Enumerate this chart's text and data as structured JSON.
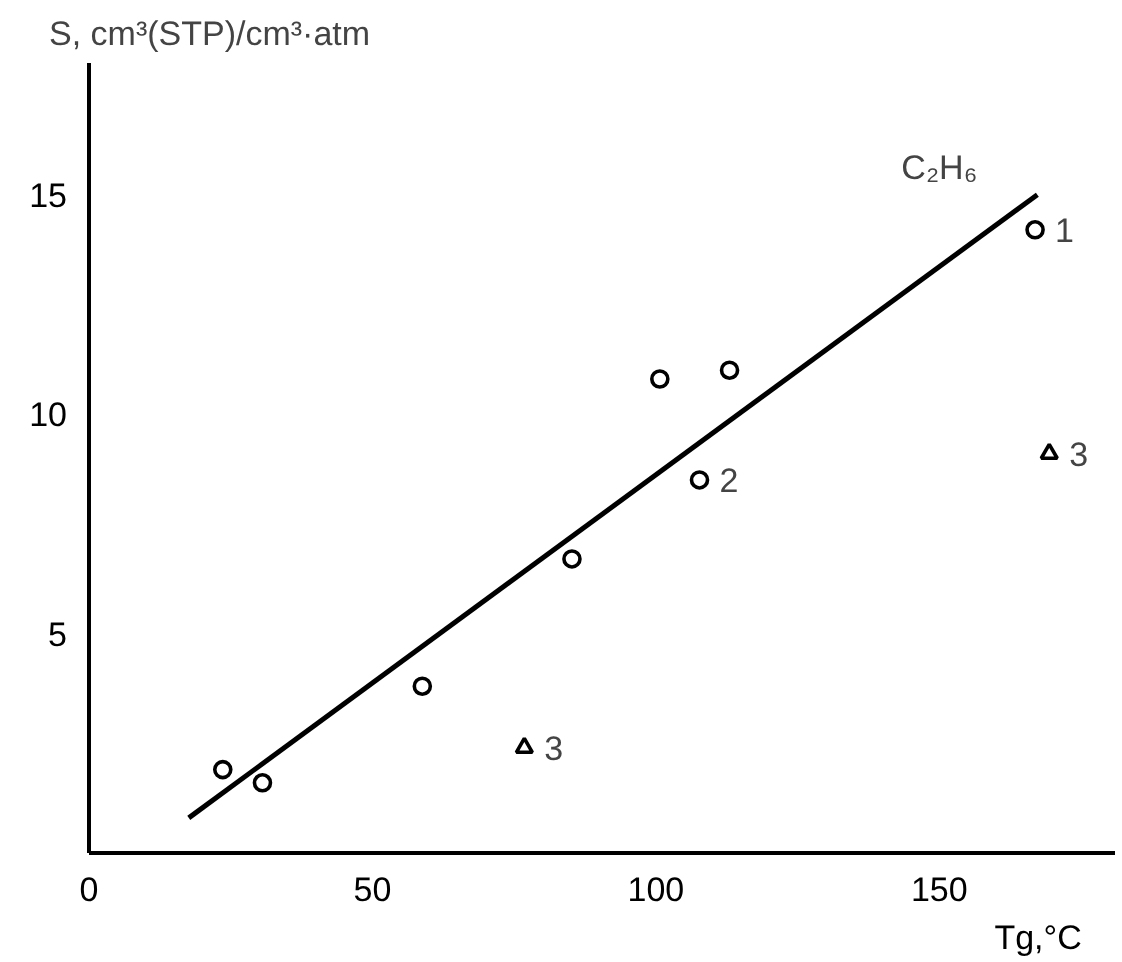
{
  "chart_data": {
    "type": "scatter",
    "ylabel": "S, cm³(STP)/cm³·atm",
    "xlabel": "Tg,°C",
    "xlim": [
      0,
      181
    ],
    "ylim": [
      0,
      18
    ],
    "xticks": [
      0,
      50,
      100,
      150
    ],
    "yticks": [
      5,
      10,
      15
    ],
    "grid": false,
    "series": [
      {
        "marker": "circle",
        "color": "#000000",
        "x": [
          23.6,
          30.6,
          58.8,
          85.2,
          100.7,
          107.7,
          113.0,
          166.9
        ],
        "values": [
          1.9,
          1.6,
          3.8,
          6.7,
          10.8,
          8.5,
          11.0,
          14.2
        ]
      },
      {
        "type": "scatter",
        "marker": "triangle",
        "color": "#000000",
        "x": [
          76.8,
          169.4
        ],
        "values": [
          2.4,
          9.1
        ]
      },
      {
        "type": "line",
        "marker": "none",
        "line_style": "solid",
        "color": "#000000",
        "x": [
          17.6,
          167.3
        ],
        "values": [
          0.8,
          15.0
        ]
      }
    ],
    "annotations": [
      "C₂H₆",
      {
        "text": "1",
        "x": 166.9,
        "y": 14.2
      },
      {
        "text": "2",
        "x": 107.7,
        "y": 8.5
      },
      {
        "text": "3",
        "x": 76.8,
        "y": 2.4
      },
      {
        "text": "3",
        "x": 169.4,
        "y": 9.1
      }
    ]
  }
}
